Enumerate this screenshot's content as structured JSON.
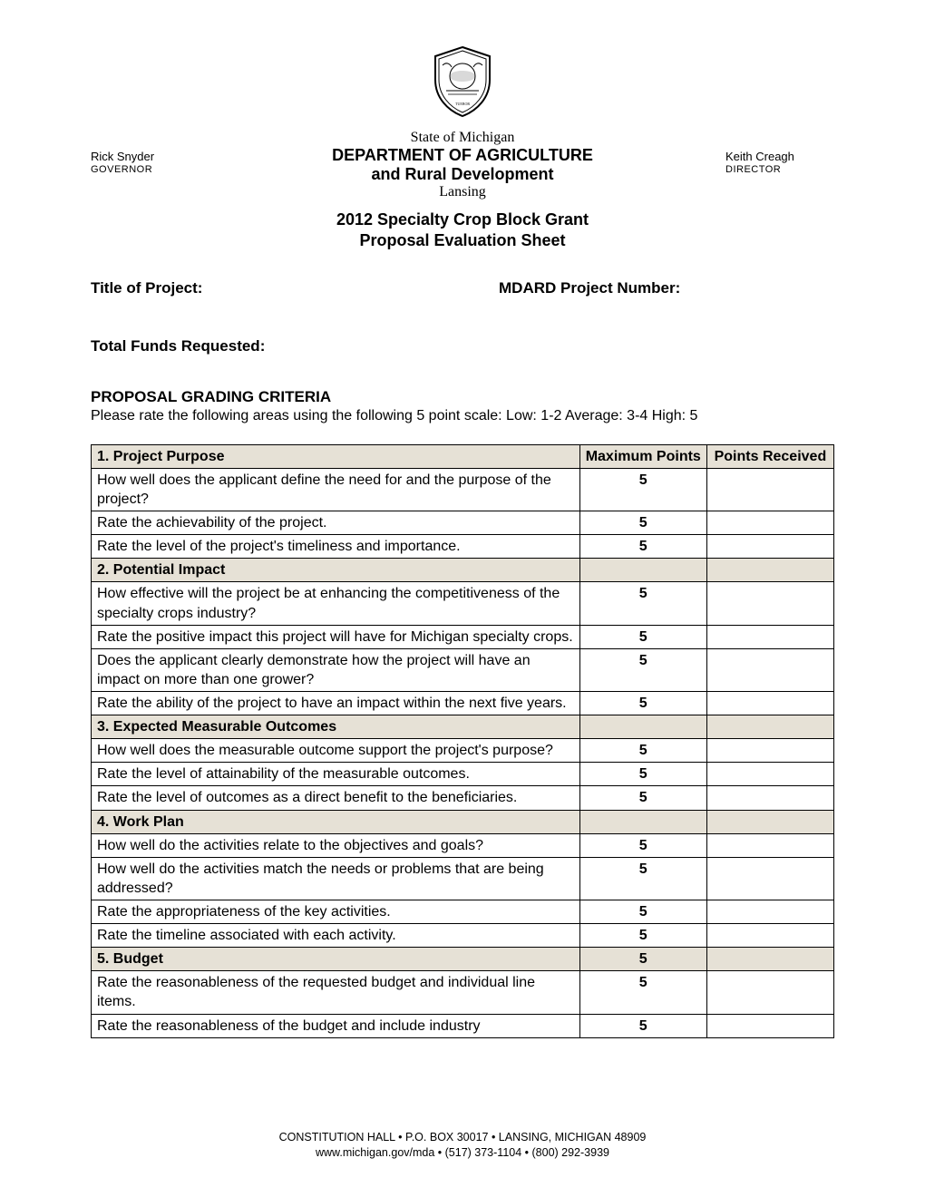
{
  "header": {
    "left_name": "Rick Snyder",
    "left_title": "GOVERNOR",
    "state_line": "State of Michigan",
    "dept_line": "DEPARTMENT OF AGRICULTURE",
    "rural_line": "and Rural Development",
    "city_line": "Lansing",
    "right_name": "Keith Creagh",
    "right_title": "DIRECTOR"
  },
  "program": {
    "line1": "2012 Specialty Crop Block Grant",
    "line2": "Proposal Evaluation Sheet"
  },
  "fields": {
    "title_label": "Title of Project:",
    "number_label": "MDARD Project Number:",
    "funds_label": "Total Funds Requested:"
  },
  "criteria": {
    "heading": "PROPOSAL GRADING CRITERIA",
    "sub": "Please rate the following areas using the following 5 point scale: Low: 1-2 Average: 3-4 High: 5"
  },
  "table": {
    "col_criteria": "1. Project Purpose",
    "col_max": "Maximum Points",
    "col_recv": "Points Received",
    "rows": [
      {
        "type": "item",
        "text": "How well does the applicant define the need for and the purpose of the project?",
        "max": "5"
      },
      {
        "type": "item",
        "text": "Rate the achievability of the project.",
        "max": "5"
      },
      {
        "type": "item",
        "text": "Rate the level of the project's timeliness and importance.",
        "max": "5"
      },
      {
        "type": "section",
        "text": "2. Potential Impact"
      },
      {
        "type": "item",
        "text": "How effective will the project be at enhancing the competitiveness of the specialty crops industry?",
        "max": "5"
      },
      {
        "type": "item",
        "text": "Rate the positive impact this project will have for Michigan specialty crops.",
        "max": "5"
      },
      {
        "type": "item",
        "text": "Does the applicant clearly demonstrate how the project will have an impact on more than one grower?",
        "max": "5"
      },
      {
        "type": "item",
        "text": "Rate the ability of the project to have an impact within the next five years.",
        "max": "5"
      },
      {
        "type": "section",
        "text": "3. Expected Measurable Outcomes"
      },
      {
        "type": "item",
        "text": "How well does the measurable outcome support the project's purpose?",
        "max": "5"
      },
      {
        "type": "item",
        "text": "Rate the level of attainability of the measurable outcomes.",
        "max": "5"
      },
      {
        "type": "item",
        "text": "Rate the level of outcomes as a direct benefit to the beneficiaries.",
        "max": "5"
      },
      {
        "type": "section",
        "text": "4. Work Plan"
      },
      {
        "type": "item",
        "text": "How well do the activities relate to the objectives and goals?",
        "max": "5"
      },
      {
        "type": "item",
        "text": "How well do the activities match the needs or problems that are being addressed?",
        "max": "5"
      },
      {
        "type": "item",
        "text": "Rate the appropriateness of the key activities.",
        "max": "5"
      },
      {
        "type": "item",
        "text": "Rate the timeline associated with each activity.",
        "max": "5"
      },
      {
        "type": "section_with_max",
        "text": "5. Budget",
        "max": "5"
      },
      {
        "type": "item",
        "text": "Rate the reasonableness of the requested budget and individual line items.",
        "max": "5"
      },
      {
        "type": "item",
        "text": "Rate the reasonableness of the budget and include industry",
        "max": "5"
      }
    ]
  },
  "footer": {
    "line1": "CONSTITUTION HALL • P.O. BOX 30017 • LANSING, MICHIGAN 48909",
    "line2": "www.michigan.gov/mda • (517) 373-1104 • (800) 292-3939"
  }
}
